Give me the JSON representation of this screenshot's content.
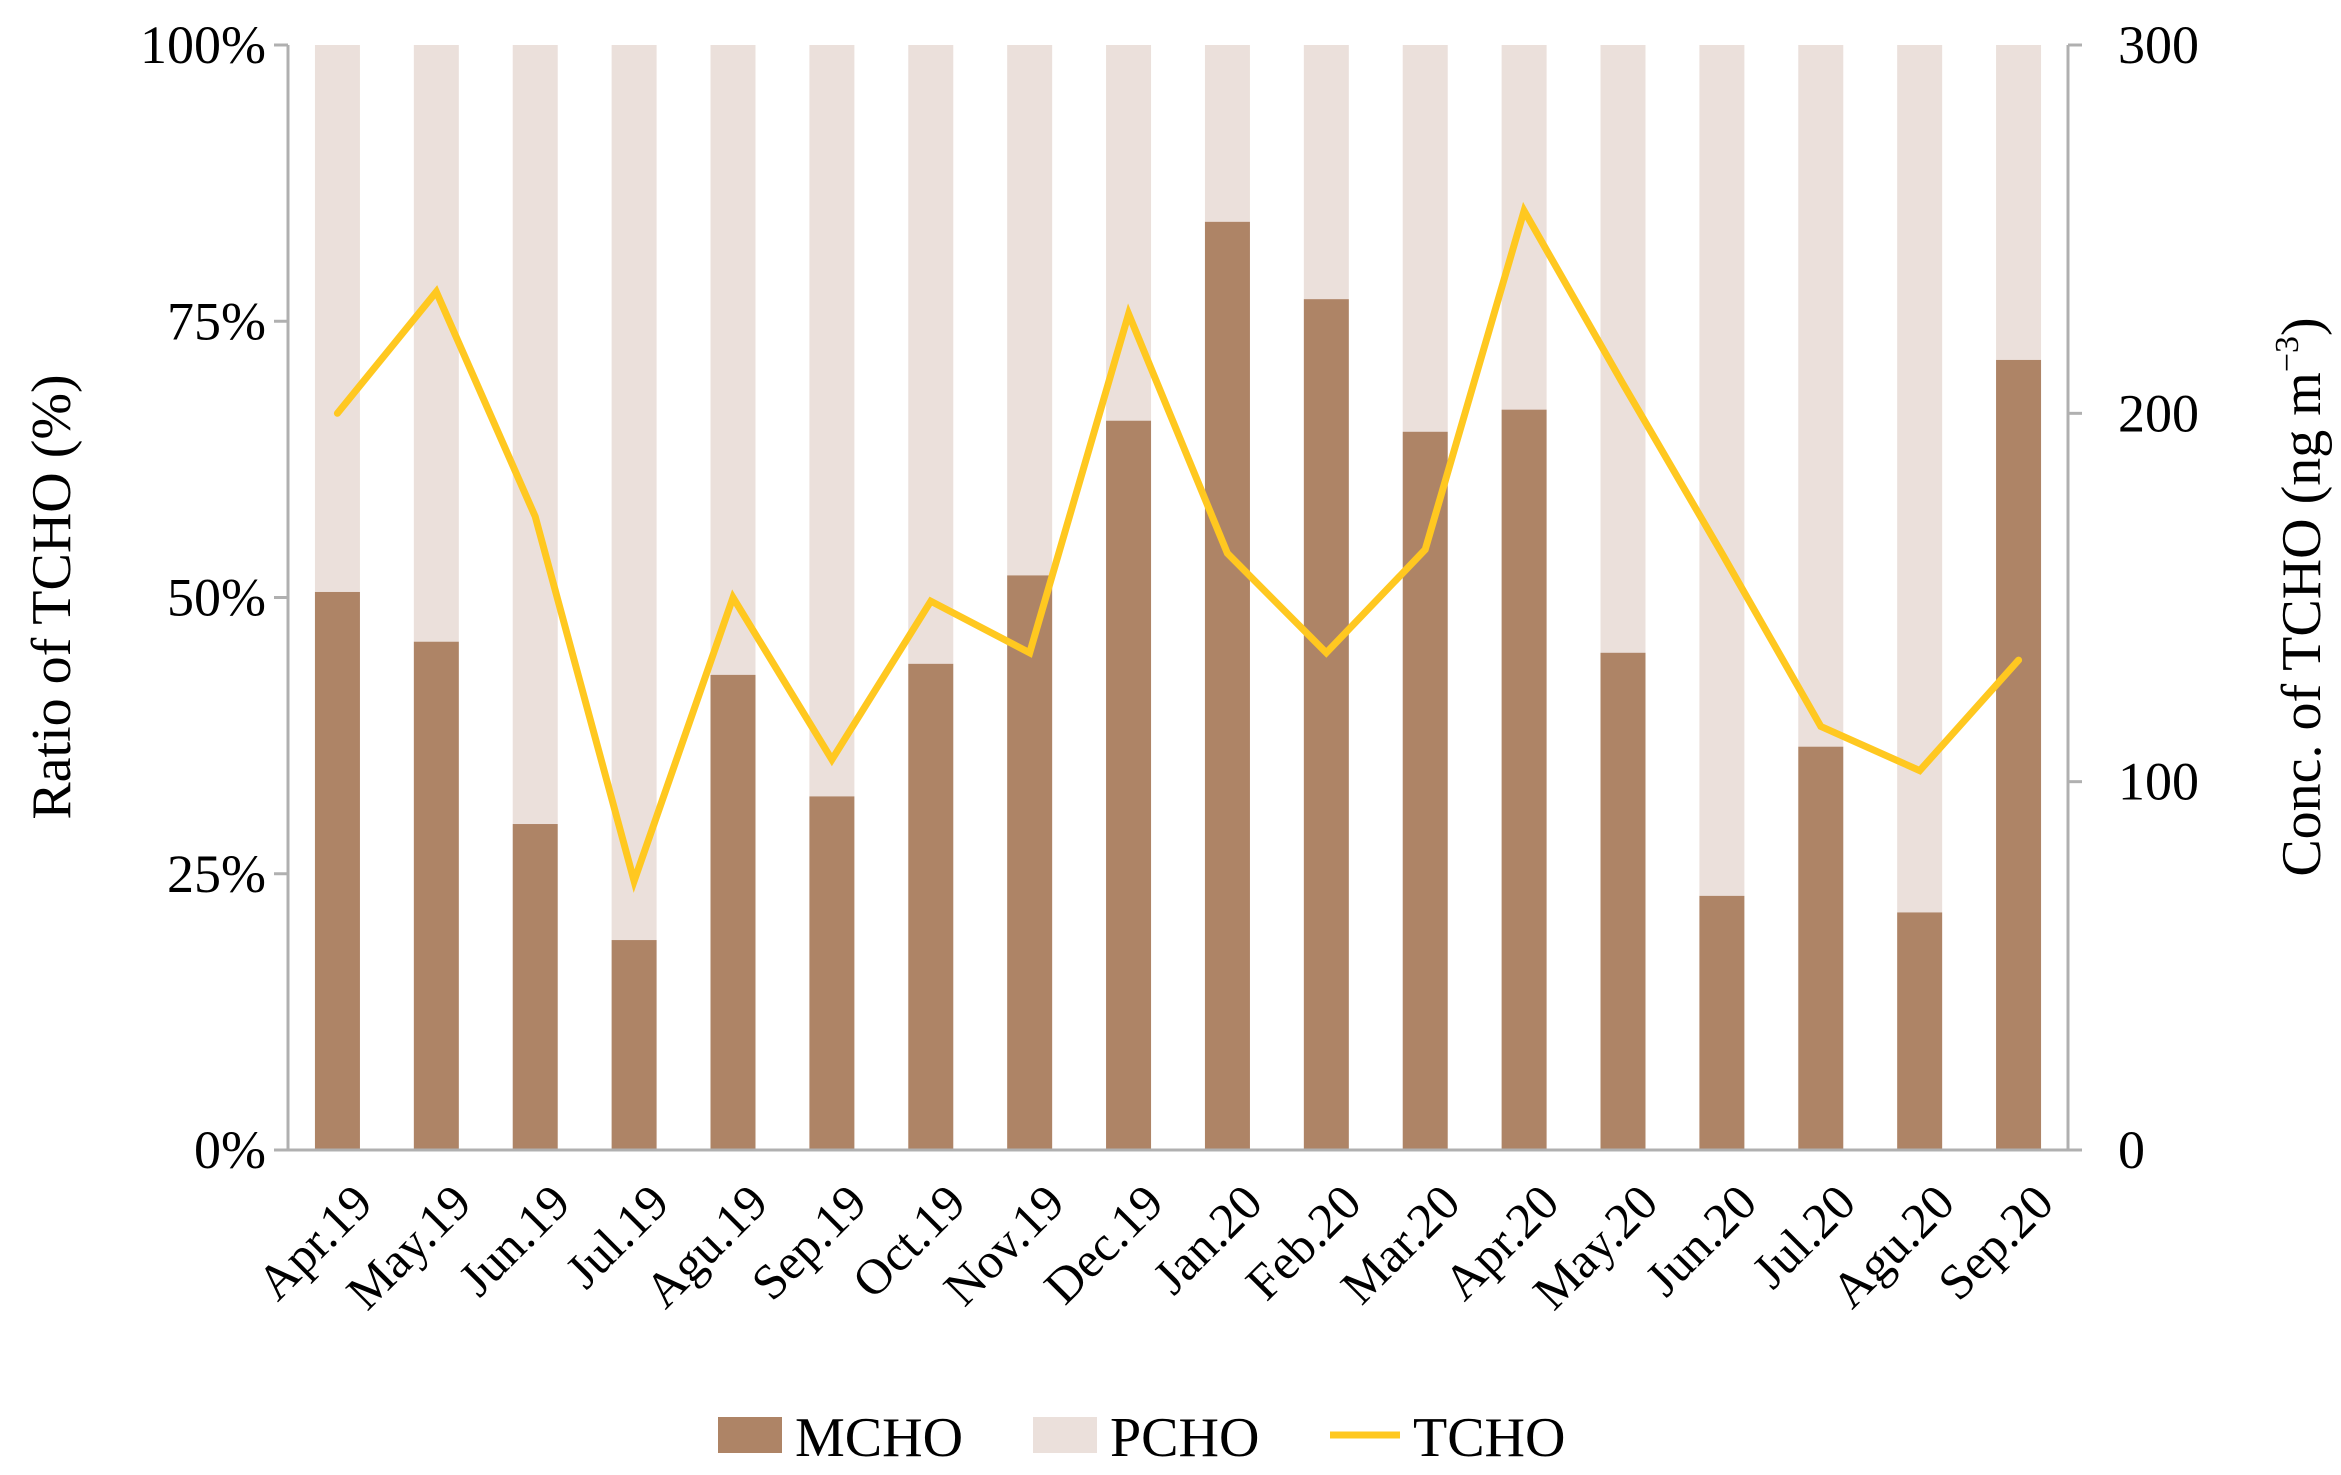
{
  "chart_data": {
    "type": "bar",
    "stacked": true,
    "stacked_percent": true,
    "categories": [
      "Apr.19",
      "May.19",
      "Jun.19",
      "Jul.19",
      "Agu.19",
      "Sep.19",
      "Oct.19",
      "Nov.19",
      "Dec.19",
      "Jan.20",
      "Feb.20",
      "Mar.20",
      "Apr.20",
      "May.20",
      "Jun.20",
      "Jul.20",
      "Agu.20",
      "Sep.20"
    ],
    "series": [
      {
        "name": "MCHO",
        "type": "bar",
        "axis": "left",
        "color": "#ae8466",
        "values": [
          50.5,
          46,
          29.5,
          19,
          43,
          32,
          44,
          52,
          66,
          84,
          77,
          65,
          67,
          45,
          23,
          36.5,
          21.5,
          71.5
        ]
      },
      {
        "name": "PCHO",
        "type": "bar",
        "axis": "left",
        "color": "#ebe0db",
        "values": [
          49.5,
          54,
          70.5,
          81,
          57,
          68,
          56,
          48,
          34,
          16,
          23,
          35,
          33,
          55,
          77,
          63.5,
          78.5,
          28.5
        ]
      },
      {
        "name": "TCHO",
        "type": "line",
        "axis": "right",
        "color": "#ffc820",
        "values": [
          200,
          233,
          172,
          73,
          150,
          106,
          149,
          135,
          227,
          162,
          135,
          163,
          255,
          208,
          162,
          115,
          103,
          133
        ]
      }
    ],
    "y_left": {
      "label": "Ratio of  TCHO (%)",
      "ticks": [
        "0%",
        "25%",
        "50%",
        "75%",
        "100%"
      ],
      "lim": [
        0,
        100
      ]
    },
    "y_right": {
      "label_main": "Conc. of  TCHO (ng  m",
      "label_sup": "−3",
      "label_close": ")",
      "ticks": [
        "0",
        "100",
        "200",
        "300"
      ],
      "lim": [
        0,
        300
      ]
    },
    "grid": false,
    "legend": {
      "position": "bottom",
      "items": [
        "MCHO",
        "PCHO",
        "TCHO"
      ]
    }
  }
}
